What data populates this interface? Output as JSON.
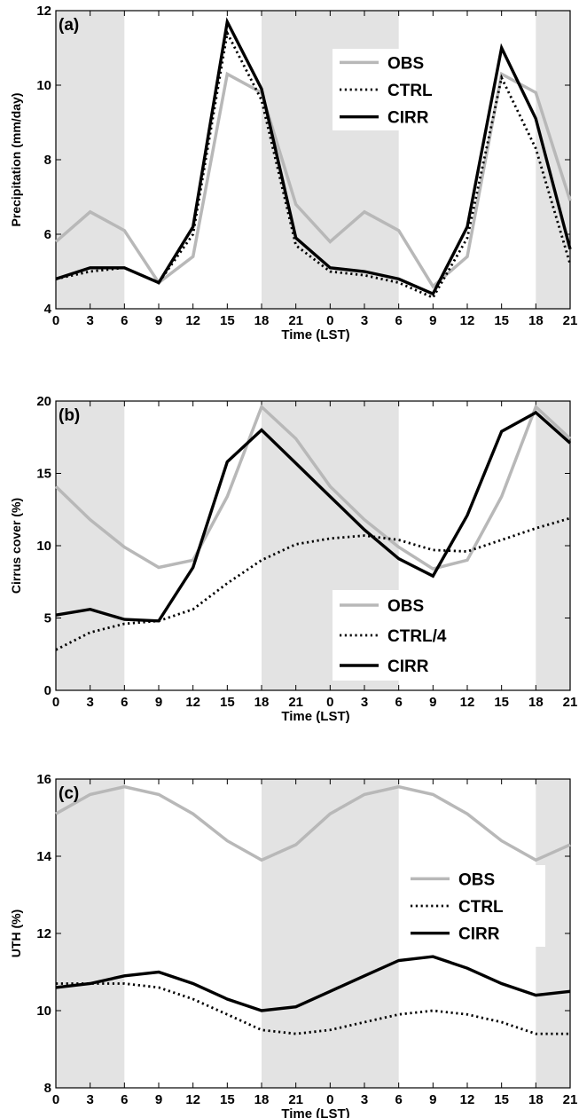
{
  "chart_data": [
    {
      "type": "line",
      "panel_label": "(a)",
      "xlabel": "Time (LST)",
      "ylabel": "Precipitation (mm/day)",
      "x_tick_labels": [
        "0",
        "3",
        "6",
        "9",
        "12",
        "15",
        "18",
        "21",
        "0",
        "3",
        "6",
        "9",
        "12",
        "15",
        "18",
        "21"
      ],
      "y_ticks": [
        "4",
        "6",
        "8",
        "10",
        "12"
      ],
      "ylim": [
        4,
        12
      ],
      "night_shading": [
        [
          0,
          6
        ],
        [
          18,
          30
        ],
        [
          42,
          45
        ]
      ],
      "legend_position": "top-right",
      "series": [
        {
          "name": "OBS",
          "style": "gray-solid",
          "values": [
            5.8,
            6.6,
            6.1,
            4.7,
            5.4,
            10.3,
            9.8,
            6.8,
            5.8,
            6.6,
            6.1,
            4.6,
            5.4,
            10.3,
            9.8,
            6.9
          ]
        },
        {
          "name": "CTRL",
          "style": "black-dotted",
          "values": [
            4.8,
            5.0,
            5.1,
            4.7,
            6.0,
            11.4,
            9.6,
            5.7,
            5.0,
            4.9,
            4.7,
            4.3,
            5.9,
            10.2,
            8.3,
            5.2
          ]
        },
        {
          "name": "CIRR",
          "style": "black-solid",
          "values": [
            4.8,
            5.1,
            5.1,
            4.7,
            6.2,
            11.7,
            9.9,
            5.9,
            5.1,
            5.0,
            4.8,
            4.4,
            6.2,
            11.0,
            9.1,
            5.6
          ]
        }
      ]
    },
    {
      "type": "line",
      "panel_label": "(b)",
      "xlabel": "Time (LST)",
      "ylabel": "Cirrus cover (%)",
      "x_tick_labels": [
        "0",
        "3",
        "6",
        "9",
        "12",
        "15",
        "18",
        "21",
        "0",
        "3",
        "6",
        "9",
        "12",
        "15",
        "18",
        "21"
      ],
      "y_ticks": [
        "0",
        "5",
        "10",
        "15",
        "20"
      ],
      "ylim": [
        0,
        20
      ],
      "night_shading": [
        [
          0,
          6
        ],
        [
          18,
          30
        ],
        [
          42,
          45
        ]
      ],
      "legend_position": "bottom-right",
      "series": [
        {
          "name": "OBS",
          "style": "gray-solid",
          "values": [
            14.1,
            11.8,
            9.9,
            8.5,
            9.0,
            13.4,
            19.6,
            17.4,
            14.1,
            11.8,
            9.9,
            8.4,
            9.0,
            13.4,
            19.6,
            17.4
          ]
        },
        {
          "name": "CTRL/4",
          "style": "black-dotted",
          "values": [
            2.8,
            4.0,
            4.6,
            4.8,
            5.6,
            7.4,
            9.0,
            10.1,
            10.5,
            10.7,
            10.4,
            9.7,
            9.6,
            10.4,
            11.2,
            11.9
          ]
        },
        {
          "name": "CIRR",
          "style": "black-solid",
          "values": [
            5.2,
            5.6,
            4.9,
            4.8,
            8.5,
            15.8,
            18.0,
            15.7,
            13.4,
            11.1,
            9.1,
            7.9,
            12.1,
            17.9,
            19.2,
            17.1
          ]
        }
      ]
    },
    {
      "type": "line",
      "panel_label": "(c)",
      "xlabel": "Time (LST)",
      "ylabel": "UTH (%)",
      "x_tick_labels": [
        "0",
        "3",
        "6",
        "9",
        "12",
        "15",
        "18",
        "21",
        "0",
        "3",
        "6",
        "9",
        "12",
        "15",
        "18",
        "21"
      ],
      "y_ticks": [
        "8",
        "10",
        "12",
        "14",
        "16"
      ],
      "ylim": [
        8,
        16
      ],
      "night_shading": [
        [
          0,
          6
        ],
        [
          18,
          30
        ],
        [
          42,
          45
        ]
      ],
      "legend_position": "right",
      "series": [
        {
          "name": "OBS",
          "style": "gray-solid",
          "values": [
            15.1,
            15.6,
            15.8,
            15.6,
            15.1,
            14.4,
            13.9,
            14.3,
            15.1,
            15.6,
            15.8,
            15.6,
            15.1,
            14.4,
            13.9,
            14.3
          ]
        },
        {
          "name": "CTRL",
          "style": "black-dotted",
          "values": [
            10.7,
            10.7,
            10.7,
            10.6,
            10.3,
            9.9,
            9.5,
            9.4,
            9.5,
            9.7,
            9.9,
            10.0,
            9.9,
            9.7,
            9.4,
            9.4
          ]
        },
        {
          "name": "CIRR",
          "style": "black-solid",
          "values": [
            10.6,
            10.7,
            10.9,
            11.0,
            10.7,
            10.3,
            10.0,
            10.1,
            10.5,
            10.9,
            11.3,
            11.4,
            11.1,
            10.7,
            10.4,
            10.5
          ]
        }
      ]
    }
  ]
}
